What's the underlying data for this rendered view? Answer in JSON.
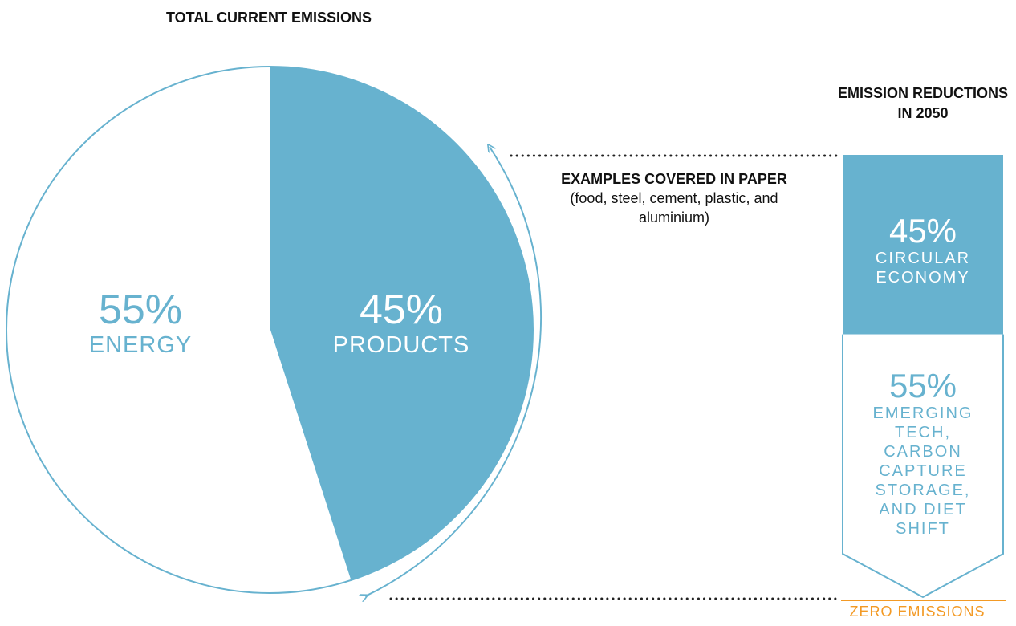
{
  "titles": {
    "pie": "TOTAL CURRENT EMISSIONS",
    "reduction": "EMISSION REDUCTIONS IN 2050",
    "examples_title": "EXAMPLES COVERED IN PAPER",
    "examples_subtitle": "(food, steel, cement, plastic, and aluminium)",
    "zero": "ZERO EMISSIONS"
  },
  "colors": {
    "accent": "#67b2cf",
    "text": "#111111",
    "zero_line": "#f39a25",
    "white": "#ffffff"
  },
  "chart_data": [
    {
      "type": "pie",
      "title": "TOTAL CURRENT EMISSIONS",
      "slices": [
        {
          "label": "PRODUCTS",
          "value": 45,
          "display": "45%",
          "color": "#67b2cf",
          "text_color": "#ffffff"
        },
        {
          "label": "ENERGY",
          "value": 55,
          "display": "55%",
          "color": "#ffffff",
          "text_color": "#67b2cf"
        }
      ]
    },
    {
      "type": "bar",
      "title": "EMISSION REDUCTIONS IN 2050",
      "orientation": "vertical-stacked",
      "segments": [
        {
          "label": "CIRCULAR ECONOMY",
          "value": 45,
          "display": "45%",
          "color": "#67b2cf",
          "text_color": "#ffffff"
        },
        {
          "label": "EMERGING TECH, CARBON CAPTURE STORAGE, AND DIET SHIFT",
          "value": 55,
          "display": "55%",
          "color": "#ffffff",
          "text_color": "#67b2cf"
        }
      ],
      "end_label": "ZERO EMISSIONS"
    }
  ]
}
